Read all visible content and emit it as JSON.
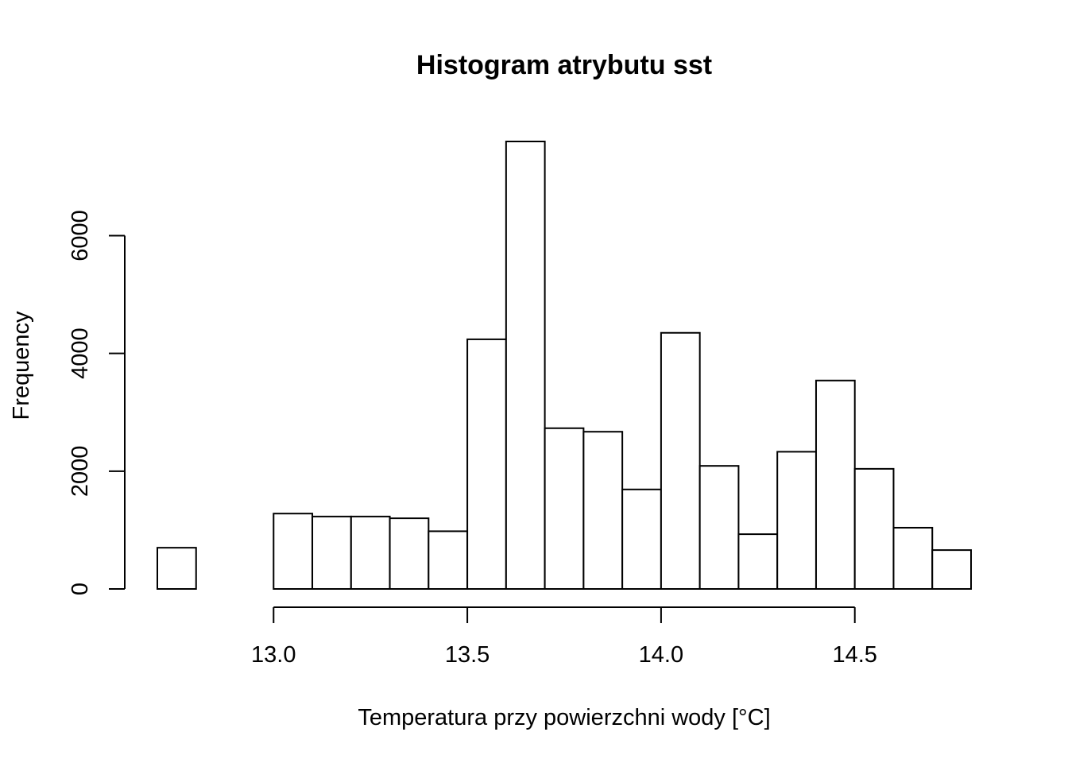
{
  "chart_data": {
    "type": "bar",
    "title": "Histogram atrybutu sst",
    "xlabel": "Temperatura przy powierzchni wody [°C]",
    "ylabel": "Frequency",
    "bins": [
      {
        "x0": 12.7,
        "x1": 12.8,
        "count": 700
      },
      {
        "x0": 12.8,
        "x1": 12.9,
        "count": 0
      },
      {
        "x0": 12.9,
        "x1": 13.0,
        "count": 0
      },
      {
        "x0": 13.0,
        "x1": 13.1,
        "count": 1280
      },
      {
        "x0": 13.1,
        "x1": 13.2,
        "count": 1230
      },
      {
        "x0": 13.2,
        "x1": 13.3,
        "count": 1230
      },
      {
        "x0": 13.3,
        "x1": 13.4,
        "count": 1200
      },
      {
        "x0": 13.4,
        "x1": 13.5,
        "count": 980
      },
      {
        "x0": 13.5,
        "x1": 13.6,
        "count": 4240
      },
      {
        "x0": 13.6,
        "x1": 13.7,
        "count": 7600
      },
      {
        "x0": 13.7,
        "x1": 13.8,
        "count": 2730
      },
      {
        "x0": 13.8,
        "x1": 13.9,
        "count": 2670
      },
      {
        "x0": 13.9,
        "x1": 14.0,
        "count": 1690
      },
      {
        "x0": 14.0,
        "x1": 14.1,
        "count": 4350
      },
      {
        "x0": 14.1,
        "x1": 14.2,
        "count": 2090
      },
      {
        "x0": 14.2,
        "x1": 14.3,
        "count": 930
      },
      {
        "x0": 14.3,
        "x1": 14.4,
        "count": 2330
      },
      {
        "x0": 14.4,
        "x1": 14.5,
        "count": 3540
      },
      {
        "x0": 14.5,
        "x1": 14.6,
        "count": 2040
      },
      {
        "x0": 14.6,
        "x1": 14.7,
        "count": 1040
      },
      {
        "x0": 14.7,
        "x1": 14.8,
        "count": 660
      }
    ],
    "x_ticks": [
      13.0,
      13.5,
      14.0,
      14.5
    ],
    "x_tick_labels": [
      "13.0",
      "13.5",
      "14.0",
      "14.5"
    ],
    "y_ticks": [
      0,
      2000,
      4000,
      6000
    ],
    "y_tick_labels": [
      "0",
      "2000",
      "4000",
      "6000"
    ],
    "xlim": [
      12.7,
      14.8
    ],
    "ylim": [
      0,
      7600
    ],
    "grid": false,
    "bar_fill": "#ffffff",
    "bar_stroke": "#000000"
  }
}
